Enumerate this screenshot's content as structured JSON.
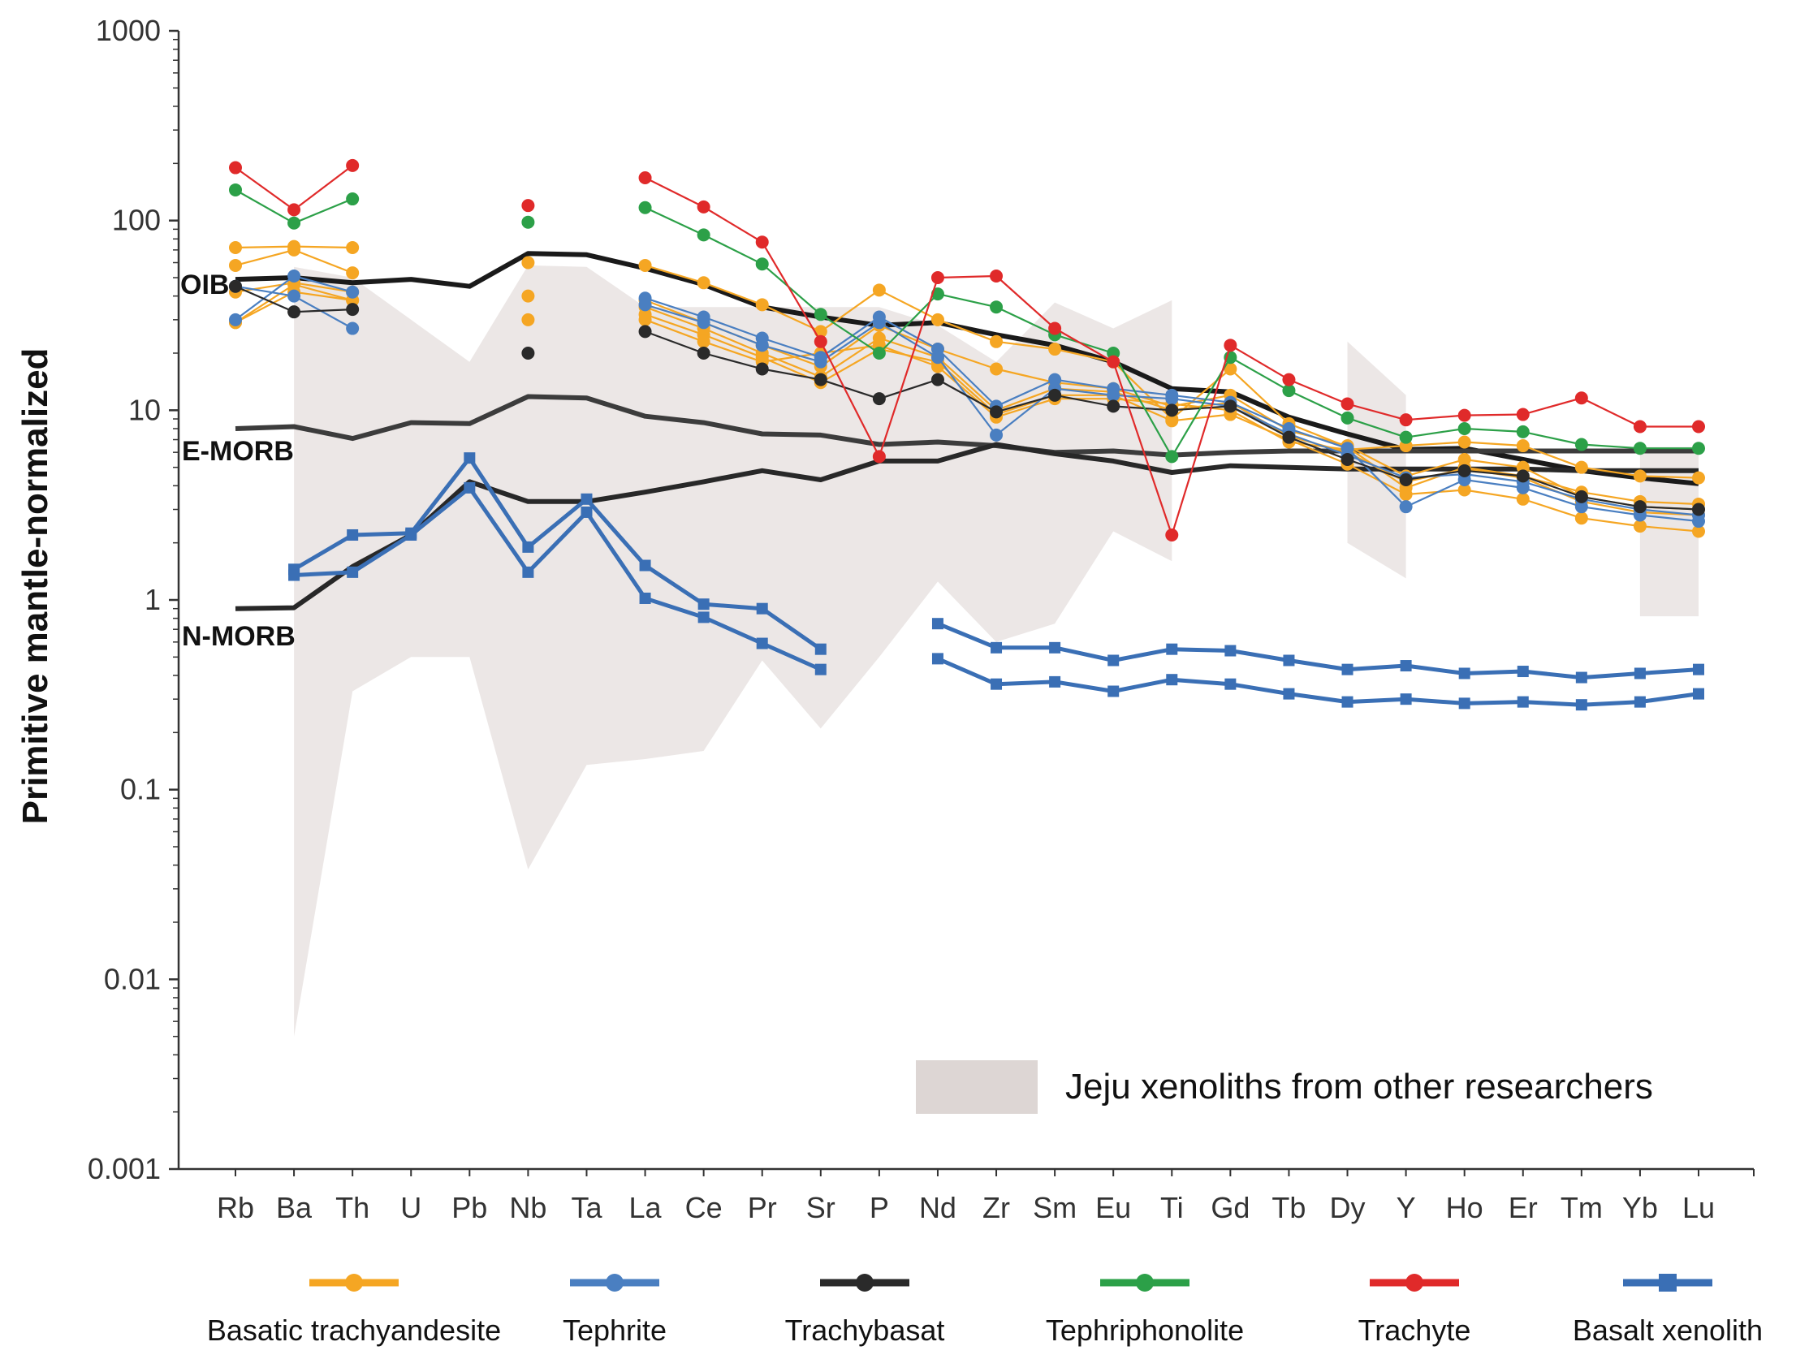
{
  "chart_data": {
    "type": "line",
    "yscale": "log",
    "ylabel": "Primitive mantle-normalized",
    "ylim": [
      0.001,
      1000
    ],
    "yticks": [
      {
        "value": 0.001,
        "label": "0.001"
      },
      {
        "value": 0.01,
        "label": "0.01"
      },
      {
        "value": 0.1,
        "label": "0.1"
      },
      {
        "value": 1,
        "label": "1"
      },
      {
        "value": 10,
        "label": "10"
      },
      {
        "value": 100,
        "label": "100"
      },
      {
        "value": 1000,
        "label": "1000"
      }
    ],
    "categories": [
      "Rb",
      "Ba",
      "Th",
      "U",
      "Pb",
      "Nb",
      "Ta",
      "La",
      "Ce",
      "Pr",
      "Sr",
      "P",
      "Nd",
      "Zr",
      "Sm",
      "Eu",
      "Ti",
      "Gd",
      "Tb",
      "Dy",
      "Y",
      "Ho",
      "Er",
      "Tm",
      "Yb",
      "Lu"
    ],
    "shaded_region": {
      "label": "Jeju xenoliths from other researchers",
      "color": "#ece7e6",
      "upper": [
        null,
        57,
        50,
        30,
        18,
        58,
        57,
        35,
        35,
        35,
        35,
        35,
        28,
        18,
        37,
        27,
        38,
        null,
        null,
        23,
        12,
        null,
        null,
        null,
        6.4,
        6.4
      ],
      "lower": [
        null,
        0.005,
        0.33,
        0.5,
        0.5,
        0.038,
        0.135,
        0.145,
        0.16,
        0.48,
        0.21,
        0.5,
        1.25,
        0.6,
        0.75,
        2.3,
        1.6,
        null,
        null,
        2.0,
        1.3,
        null,
        null,
        null,
        0.82,
        0.82
      ]
    },
    "reference_lines": [
      {
        "name": "OIB",
        "color": "#1a1a1a",
        "values": [
          49,
          50,
          47,
          49,
          45,
          67,
          66,
          56,
          46,
          35,
          31,
          28,
          29,
          25,
          22,
          18,
          13,
          12.5,
          9.2,
          7.5,
          6.2,
          6.3,
          5.5,
          4.8,
          4.4,
          4.1
        ]
      },
      {
        "name": "E-MORB",
        "color": "#3c3c3c",
        "values": [
          8,
          8.2,
          7.1,
          8.6,
          8.5,
          11.8,
          11.6,
          9.3,
          8.6,
          7.5,
          7.4,
          6.6,
          6.8,
          6.5,
          6.0,
          6.1,
          5.8,
          6.0,
          6.1,
          6.1,
          6.1,
          6.1,
          6.1,
          6.1,
          6.1,
          6.1
        ]
      },
      {
        "name": "N-MORB",
        "color": "#282828",
        "values": [
          0.9,
          0.91,
          1.5,
          2.2,
          4.2,
          3.3,
          3.3,
          3.7,
          4.2,
          4.8,
          4.3,
          5.4,
          5.4,
          6.6,
          5.9,
          5.4,
          4.7,
          5.1,
          5.0,
          4.9,
          4.9,
          4.9,
          4.9,
          4.8,
          4.8,
          4.8
        ]
      }
    ],
    "series": [
      {
        "name": "Basatic trachyandesite",
        "color": "#f5a623",
        "marker": "circle",
        "samples": [
          [
            72,
            73,
            72,
            null,
            null,
            60,
            null,
            58,
            47,
            36,
            26,
            43,
            30,
            23,
            21,
            18,
            9,
            16.5,
            8.5,
            6.4,
            3.9,
            5.0,
            4.5,
            3.7,
            3.3,
            3.2
          ],
          [
            58,
            70,
            53,
            null,
            null,
            40,
            null,
            38,
            29,
            22,
            17,
            28,
            21,
            16.5,
            14,
            13,
            10.5,
            12,
            7.8,
            6.5,
            4.5,
            5.5,
            5.0,
            3.5,
            3.1,
            3.0
          ],
          [
            42,
            47,
            42,
            null,
            null,
            30,
            null,
            35,
            27,
            20,
            15,
            24,
            19,
            10,
            13,
            12.5,
            10,
            11,
            7.3,
            6.0,
            4.2,
            4.9,
            4.4,
            3.3,
            2.9,
            2.8
          ],
          [
            29,
            42,
            38,
            null,
            null,
            null,
            null,
            32,
            25,
            19,
            14,
            21,
            18,
            9.5,
            12,
            12,
            8.8,
            9.5,
            7.0,
            5.2,
            3.6,
            3.8,
            3.4,
            2.7,
            2.45,
            2.3
          ],
          [
            29,
            46,
            38,
            null,
            null,
            null,
            null,
            30,
            23,
            18,
            20,
            22,
            17,
            9.2,
            11.5,
            11.5,
            10.8,
            10,
            6.8,
            6.2,
            6.5,
            6.8,
            6.5,
            5.0,
            4.5,
            4.4
          ]
        ]
      },
      {
        "name": "Tephrite",
        "color": "#4a7fc1",
        "marker": "circle",
        "samples": [
          [
            30,
            51,
            42,
            null,
            null,
            null,
            null,
            39,
            31,
            24,
            19,
            31,
            21,
            10.5,
            14.5,
            13,
            12,
            11,
            8,
            6.3,
            3.1,
            4.3,
            3.9,
            3.1,
            2.8,
            2.6
          ],
          [
            45,
            40,
            27,
            null,
            null,
            null,
            null,
            36,
            29,
            22,
            18,
            29,
            19,
            7.4,
            13,
            12,
            11.5,
            10.5,
            7.5,
            5.8,
            4.4,
            4.6,
            4.2,
            3.4,
            3.0,
            2.8
          ]
        ]
      },
      {
        "name": "Trachybasat",
        "color": "#2a2a2a",
        "marker": "circle",
        "samples": [
          [
            45,
            33,
            34,
            null,
            null,
            20,
            null,
            26,
            20,
            16.5,
            14.5,
            11.5,
            14.5,
            9.8,
            12,
            10.5,
            10,
            10.5,
            7.2,
            5.5,
            4.3,
            4.8,
            4.5,
            3.5,
            3.1,
            3.0
          ]
        ]
      },
      {
        "name": "Tephriphonolite",
        "color": "#2ca048",
        "marker": "circle",
        "samples": [
          [
            145,
            97,
            130,
            null,
            null,
            98,
            null,
            117,
            84,
            59,
            32,
            20,
            41,
            35,
            25,
            20,
            5.7,
            19,
            12.7,
            9.1,
            7.2,
            8.0,
            7.7,
            6.6,
            6.3,
            6.3
          ]
        ]
      },
      {
        "name": "Trachyte",
        "color": "#e02a2a",
        "marker": "circle",
        "samples": [
          [
            190,
            114,
            195,
            null,
            null,
            120,
            null,
            168,
            118,
            77,
            23,
            5.7,
            50,
            51,
            27,
            18,
            2.2,
            22,
            14.5,
            10.8,
            8.9,
            9.4,
            9.5,
            11.6,
            8.2,
            8.2
          ]
        ]
      },
      {
        "name": "Basalt xenolith",
        "color": "#3a6fb5",
        "marker": "square",
        "samples": [
          [
            null,
            1.45,
            2.2,
            2.25,
            5.6,
            1.9,
            3.4,
            1.52,
            0.95,
            0.9,
            0.55,
            null,
            0.75,
            0.56,
            0.56,
            0.48,
            0.55,
            0.54,
            0.48,
            0.43,
            0.45,
            0.41,
            0.42,
            0.39,
            0.41,
            0.43
          ],
          [
            null,
            1.35,
            1.4,
            2.2,
            3.9,
            1.4,
            2.9,
            1.02,
            0.81,
            0.59,
            0.43,
            null,
            0.49,
            0.36,
            0.37,
            0.33,
            0.38,
            0.36,
            0.32,
            0.29,
            0.3,
            0.285,
            0.29,
            0.28,
            0.29,
            0.32
          ]
        ]
      }
    ]
  }
}
